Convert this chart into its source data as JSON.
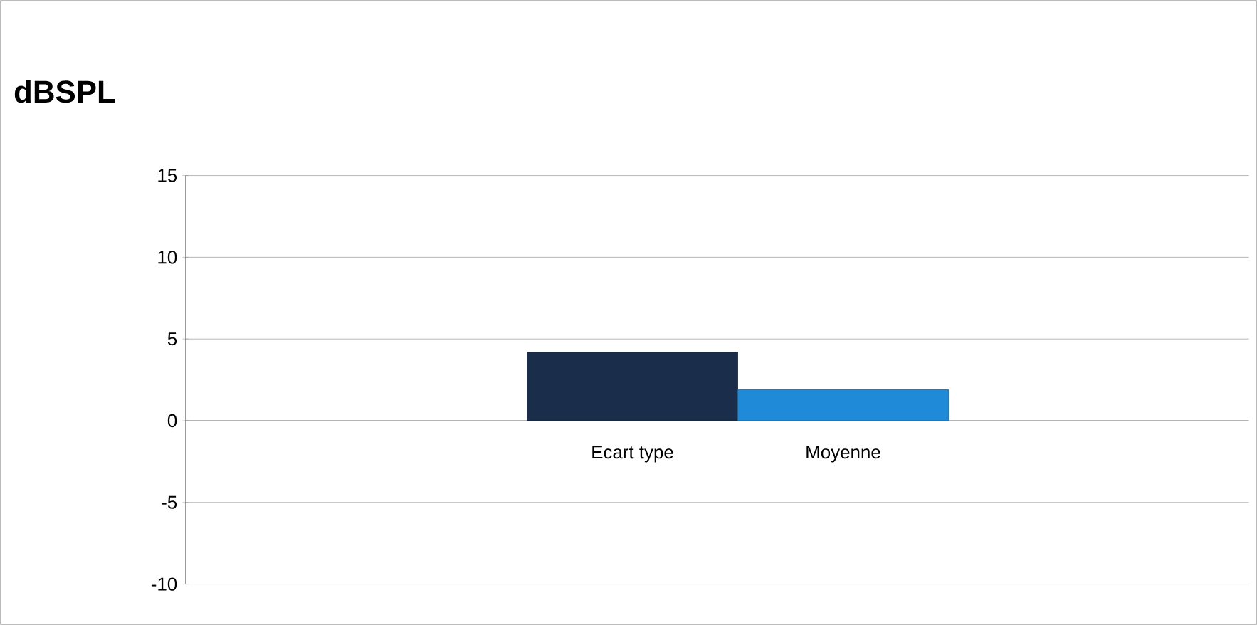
{
  "chart_data": {
    "type": "bar",
    "title": "dBSPL",
    "categories": [
      "Ecart type",
      "Moyenne"
    ],
    "values": [
      4.2,
      1.9
    ],
    "colors": [
      "#1a2d4a",
      "#1f8ad8"
    ],
    "ylim": [
      -10,
      15
    ],
    "yticks": [
      -10,
      -5,
      0,
      5,
      10,
      15
    ],
    "grid": "y"
  }
}
